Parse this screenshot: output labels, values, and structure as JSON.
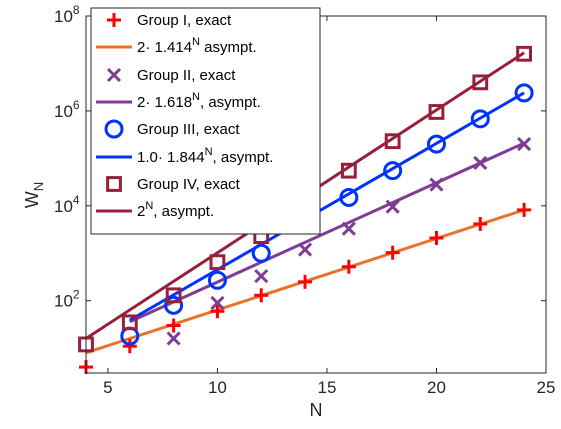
{
  "chart_data": {
    "type": "line",
    "xlabel": "N",
    "ylabel": "W",
    "ylabel_sub": "N",
    "xlim": [
      4,
      25
    ],
    "ylim": [
      3,
      100000000
    ],
    "yscale": "log",
    "grid": false,
    "legend_position": "top-left",
    "x_ticks": [
      5,
      10,
      15,
      20,
      25
    ],
    "y_ticks": [
      {
        "value": 100,
        "base": "10",
        "exp": "2"
      },
      {
        "value": 10000,
        "base": "10",
        "exp": "4"
      },
      {
        "value": 1000000,
        "base": "10",
        "exp": "6"
      },
      {
        "value": 100000000,
        "base": "10",
        "exp": "8"
      }
    ],
    "series": [
      {
        "name": "Group I, exact",
        "kind": "markers",
        "marker": "plus",
        "color": "#ff0000",
        "x": [
          4,
          6,
          8,
          10,
          12,
          14,
          16,
          18,
          20,
          22,
          24
        ],
        "y": [
          4,
          11,
          30,
          60,
          130,
          250,
          520,
          1030,
          2100,
          4150,
          8200
        ]
      },
      {
        "name": "2· 1.414^N asympt.",
        "name_parts": [
          "2· 1.414",
          "N",
          " asympt."
        ],
        "kind": "line",
        "color": "#e8742c",
        "x": [
          4,
          24
        ],
        "y": [
          8,
          8192
        ]
      },
      {
        "name": "Group II, exact",
        "kind": "markers",
        "marker": "x",
        "color": "#7e3c96",
        "x": [
          8,
          10,
          12,
          14,
          16,
          18,
          20,
          22,
          24
        ],
        "y": [
          16,
          90,
          330,
          1200,
          3300,
          9600,
          28000,
          80000,
          200000
        ]
      },
      {
        "name": "2· 1.618^N, asympt.",
        "name_parts": [
          "2· 1.618",
          "N",
          ", asympt."
        ],
        "kind": "line",
        "color": "#7e3c96",
        "x": [
          6,
          24
        ],
        "y": [
          36,
          210000
        ]
      },
      {
        "name": "Group III, exact",
        "kind": "markers",
        "marker": "circle",
        "color": "#0033ff",
        "x": [
          6,
          8,
          10,
          12,
          14,
          16,
          18,
          20,
          22,
          24
        ],
        "y": [
          18,
          80,
          270,
          1000,
          4300,
          15000,
          55000,
          200000,
          680000,
          2400000
        ]
      },
      {
        "name": "1.0· 1.844^N, asympt.",
        "name_parts": [
          "1.0· 1.844",
          "N",
          ", asympt."
        ],
        "kind": "line",
        "color": "#0033ff",
        "x": [
          6,
          24
        ],
        "y": [
          39,
          2400000
        ]
      },
      {
        "name": "Group IV, exact",
        "kind": "markers",
        "marker": "square",
        "color": "#96203a",
        "x": [
          4,
          6,
          8,
          10,
          12,
          14,
          16,
          18,
          20,
          22,
          24
        ],
        "y": [
          12,
          35,
          130,
          650,
          2300,
          13000,
          55000,
          230000,
          950000,
          4000000,
          16000000
        ]
      },
      {
        "name": "2^N, asympt.",
        "name_parts": [
          "2",
          "N",
          ", asympt."
        ],
        "kind": "line",
        "color": "#96203a",
        "x": [
          4,
          24
        ],
        "y": [
          16,
          16777216
        ]
      }
    ]
  }
}
